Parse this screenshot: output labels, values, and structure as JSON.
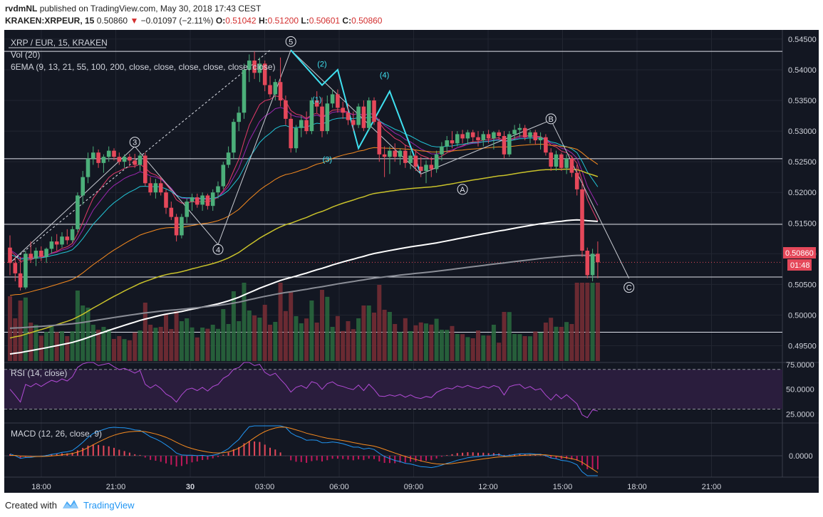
{
  "header": {
    "author": "rvdmNL",
    "published": "published on TradingView.com, May 30, 2018 17:43 CEST",
    "symbol": "KRAKEN:XRPEUR, 15",
    "last": "0.50860",
    "arrow": "▼",
    "change": "−0.01097 (−2.11%)",
    "o_label": "O:",
    "o": "0.51042",
    "h_label": "H:",
    "h": "0.51200",
    "l_label": "L:",
    "l": "0.50601",
    "c_label": "C:",
    "c": "0.50860"
  },
  "legend": {
    "title": "XRP / EUR, 15, KRAKEN",
    "vol": "Vol (20)",
    "ema": "6EMA (9, 13, 21, 55, 100, 200, close, close, close, close, close, close)"
  },
  "price_badge": "0.50860",
  "timer_badge": "01:48",
  "rsi_label": "RSI (14, close)",
  "macd_label": "MACD (12, 26, close, 9)",
  "footer": {
    "created": "Created with",
    "brand": "TradingView"
  },
  "colors": {
    "up": "#4caf7a",
    "down": "#e5485a",
    "bg": "#131722",
    "ema9": "#e43b6a",
    "ema13": "#9c27b0",
    "ema21": "#22c4d6",
    "ema55": "#f58a1f",
    "ema100": "#c9c22b",
    "ema200": "#ffffff"
  },
  "chart_data": [
    {
      "type": "candlestick",
      "title": "XRP / EUR, 15, KRAKEN",
      "y_axis": {
        "range": [
          0.4925,
          0.5465
        ],
        "ticks": [
          "0.54500",
          "0.54000",
          "0.53500",
          "0.53000",
          "0.52500",
          "0.52000",
          "0.51500",
          "0.51000",
          "0.50500",
          "0.50000",
          "0.49500"
        ]
      },
      "x_axis": {
        "ticks": [
          "18:00",
          "21:00",
          "30",
          "03:00",
          "06:00",
          "09:00",
          "12:00",
          "15:00",
          "18:00",
          "21:00"
        ]
      },
      "candles": [
        {
          "o": 0.511,
          "h": 0.513,
          "l": 0.5065,
          "c": 0.5085
        },
        {
          "o": 0.5085,
          "h": 0.5095,
          "l": 0.5055,
          "c": 0.5068
        },
        {
          "o": 0.5068,
          "h": 0.5095,
          "l": 0.504,
          "c": 0.5045
        },
        {
          "o": 0.5045,
          "h": 0.5105,
          "l": 0.5042,
          "c": 0.51
        },
        {
          "o": 0.51,
          "h": 0.512,
          "l": 0.5085,
          "c": 0.5092
        },
        {
          "o": 0.5092,
          "h": 0.511,
          "l": 0.508,
          "c": 0.5105
        },
        {
          "o": 0.5105,
          "h": 0.5112,
          "l": 0.5088,
          "c": 0.5095
        },
        {
          "o": 0.5095,
          "h": 0.511,
          "l": 0.5085,
          "c": 0.5108
        },
        {
          "o": 0.5108,
          "h": 0.5128,
          "l": 0.51,
          "c": 0.512
        },
        {
          "o": 0.512,
          "h": 0.5132,
          "l": 0.5105,
          "c": 0.5115
        },
        {
          "o": 0.5115,
          "h": 0.5135,
          "l": 0.511,
          "c": 0.5128
        },
        {
          "o": 0.5128,
          "h": 0.514,
          "l": 0.5115,
          "c": 0.5122
        },
        {
          "o": 0.5122,
          "h": 0.5145,
          "l": 0.5118,
          "c": 0.514
        },
        {
          "o": 0.514,
          "h": 0.52,
          "l": 0.5135,
          "c": 0.5195
        },
        {
          "o": 0.5195,
          "h": 0.5235,
          "l": 0.518,
          "c": 0.5225
        },
        {
          "o": 0.5225,
          "h": 0.5265,
          "l": 0.5215,
          "c": 0.5255
        },
        {
          "o": 0.5255,
          "h": 0.5275,
          "l": 0.5245,
          "c": 0.5265
        },
        {
          "o": 0.5265,
          "h": 0.527,
          "l": 0.524,
          "c": 0.5248
        },
        {
          "o": 0.5248,
          "h": 0.5262,
          "l": 0.5232,
          "c": 0.5258
        },
        {
          "o": 0.5258,
          "h": 0.5275,
          "l": 0.525,
          "c": 0.5268
        },
        {
          "o": 0.5268,
          "h": 0.5272,
          "l": 0.5252,
          "c": 0.5258
        },
        {
          "o": 0.5258,
          "h": 0.5265,
          "l": 0.5245,
          "c": 0.525
        },
        {
          "o": 0.525,
          "h": 0.5262,
          "l": 0.524,
          "c": 0.5258
        },
        {
          "o": 0.5258,
          "h": 0.5263,
          "l": 0.5245,
          "c": 0.5252
        },
        {
          "o": 0.5252,
          "h": 0.5263,
          "l": 0.524,
          "c": 0.5245
        },
        {
          "o": 0.5245,
          "h": 0.5265,
          "l": 0.5235,
          "c": 0.526
        },
        {
          "o": 0.526,
          "h": 0.5265,
          "l": 0.521,
          "c": 0.5215
        },
        {
          "o": 0.5215,
          "h": 0.5225,
          "l": 0.5195,
          "c": 0.52
        },
        {
          "o": 0.52,
          "h": 0.5222,
          "l": 0.519,
          "c": 0.5215
        },
        {
          "o": 0.5215,
          "h": 0.5225,
          "l": 0.5195,
          "c": 0.52
        },
        {
          "o": 0.52,
          "h": 0.5205,
          "l": 0.5165,
          "c": 0.5175
        },
        {
          "o": 0.5175,
          "h": 0.5185,
          "l": 0.5155,
          "c": 0.516
        },
        {
          "o": 0.516,
          "h": 0.5165,
          "l": 0.512,
          "c": 0.513
        },
        {
          "o": 0.513,
          "h": 0.5165,
          "l": 0.5125,
          "c": 0.516
        },
        {
          "o": 0.516,
          "h": 0.519,
          "l": 0.515,
          "c": 0.5185
        },
        {
          "o": 0.5185,
          "h": 0.5198,
          "l": 0.517,
          "c": 0.5192
        },
        {
          "o": 0.5192,
          "h": 0.5198,
          "l": 0.5175,
          "c": 0.518
        },
        {
          "o": 0.518,
          "h": 0.52,
          "l": 0.517,
          "c": 0.5195
        },
        {
          "o": 0.5195,
          "h": 0.5198,
          "l": 0.5172,
          "c": 0.5178
        },
        {
          "o": 0.5178,
          "h": 0.5205,
          "l": 0.517,
          "c": 0.52
        },
        {
          "o": 0.52,
          "h": 0.5218,
          "l": 0.519,
          "c": 0.521
        },
        {
          "o": 0.521,
          "h": 0.525,
          "l": 0.5205,
          "c": 0.5245
        },
        {
          "o": 0.5245,
          "h": 0.5275,
          "l": 0.524,
          "c": 0.5265
        },
        {
          "o": 0.5265,
          "h": 0.532,
          "l": 0.5255,
          "c": 0.5315
        },
        {
          "o": 0.5315,
          "h": 0.534,
          "l": 0.53,
          "c": 0.533
        },
        {
          "o": 0.533,
          "h": 0.541,
          "l": 0.532,
          "c": 0.54
        },
        {
          "o": 0.54,
          "h": 0.5425,
          "l": 0.538,
          "c": 0.5415
        },
        {
          "o": 0.5415,
          "h": 0.543,
          "l": 0.5385,
          "c": 0.5395
        },
        {
          "o": 0.5395,
          "h": 0.542,
          "l": 0.538,
          "c": 0.541
        },
        {
          "o": 0.541,
          "h": 0.5415,
          "l": 0.5365,
          "c": 0.5375
        },
        {
          "o": 0.5375,
          "h": 0.539,
          "l": 0.5355,
          "c": 0.536
        },
        {
          "o": 0.536,
          "h": 0.5385,
          "l": 0.535,
          "c": 0.538
        },
        {
          "o": 0.538,
          "h": 0.542,
          "l": 0.534,
          "c": 0.535
        },
        {
          "o": 0.535,
          "h": 0.5358,
          "l": 0.531,
          "c": 0.532
        },
        {
          "o": 0.532,
          "h": 0.533,
          "l": 0.5265,
          "c": 0.5272
        },
        {
          "o": 0.5272,
          "h": 0.531,
          "l": 0.5265,
          "c": 0.5305
        },
        {
          "o": 0.5305,
          "h": 0.5325,
          "l": 0.529,
          "c": 0.5318
        },
        {
          "o": 0.5318,
          "h": 0.5332,
          "l": 0.5295,
          "c": 0.53
        },
        {
          "o": 0.53,
          "h": 0.5355,
          "l": 0.5295,
          "c": 0.535
        },
        {
          "o": 0.535,
          "h": 0.5365,
          "l": 0.533,
          "c": 0.534
        },
        {
          "o": 0.534,
          "h": 0.5355,
          "l": 0.529,
          "c": 0.53
        },
        {
          "o": 0.53,
          "h": 0.5358,
          "l": 0.5295,
          "c": 0.5345
        },
        {
          "o": 0.5345,
          "h": 0.5368,
          "l": 0.5338,
          "c": 0.536
        },
        {
          "o": 0.536,
          "h": 0.5368,
          "l": 0.533,
          "c": 0.5338
        },
        {
          "o": 0.5338,
          "h": 0.5348,
          "l": 0.532,
          "c": 0.533
        },
        {
          "o": 0.533,
          "h": 0.5345,
          "l": 0.531,
          "c": 0.5318
        },
        {
          "o": 0.5318,
          "h": 0.5332,
          "l": 0.53,
          "c": 0.531
        },
        {
          "o": 0.531,
          "h": 0.5345,
          "l": 0.5305,
          "c": 0.534
        },
        {
          "o": 0.534,
          "h": 0.535,
          "l": 0.53,
          "c": 0.5305
        },
        {
          "o": 0.5305,
          "h": 0.5355,
          "l": 0.53,
          "c": 0.535
        },
        {
          "o": 0.535,
          "h": 0.5355,
          "l": 0.531,
          "c": 0.5315
        },
        {
          "o": 0.5315,
          "h": 0.532,
          "l": 0.525,
          "c": 0.5262
        },
        {
          "o": 0.5262,
          "h": 0.5275,
          "l": 0.5225,
          "c": 0.5258
        },
        {
          "o": 0.5258,
          "h": 0.5275,
          "l": 0.523,
          "c": 0.5268
        },
        {
          "o": 0.5268,
          "h": 0.528,
          "l": 0.525,
          "c": 0.5258
        },
        {
          "o": 0.5258,
          "h": 0.5272,
          "l": 0.5245,
          "c": 0.5268
        },
        {
          "o": 0.5268,
          "h": 0.5278,
          "l": 0.524,
          "c": 0.5248
        },
        {
          "o": 0.5248,
          "h": 0.5268,
          "l": 0.5238,
          "c": 0.526
        },
        {
          "o": 0.526,
          "h": 0.5268,
          "l": 0.5235,
          "c": 0.5242
        },
        {
          "o": 0.5242,
          "h": 0.5258,
          "l": 0.5225,
          "c": 0.5235
        },
        {
          "o": 0.5235,
          "h": 0.5252,
          "l": 0.5215,
          "c": 0.5245
        },
        {
          "o": 0.5245,
          "h": 0.5258,
          "l": 0.5225,
          "c": 0.5238
        },
        {
          "o": 0.5238,
          "h": 0.5268,
          "l": 0.5232,
          "c": 0.5262
        },
        {
          "o": 0.5262,
          "h": 0.5282,
          "l": 0.5252,
          "c": 0.5275
        },
        {
          "o": 0.5275,
          "h": 0.5292,
          "l": 0.5265,
          "c": 0.5285
        },
        {
          "o": 0.5285,
          "h": 0.53,
          "l": 0.5272,
          "c": 0.528
        },
        {
          "o": 0.528,
          "h": 0.53,
          "l": 0.5275,
          "c": 0.5295
        },
        {
          "o": 0.5295,
          "h": 0.5302,
          "l": 0.528,
          "c": 0.5288
        },
        {
          "o": 0.5288,
          "h": 0.5302,
          "l": 0.5278,
          "c": 0.5298
        },
        {
          "o": 0.5298,
          "h": 0.5302,
          "l": 0.5282,
          "c": 0.529
        },
        {
          "o": 0.529,
          "h": 0.53,
          "l": 0.5275,
          "c": 0.5285
        },
        {
          "o": 0.5285,
          "h": 0.53,
          "l": 0.5275,
          "c": 0.5295
        },
        {
          "o": 0.5295,
          "h": 0.5302,
          "l": 0.528,
          "c": 0.5288
        },
        {
          "o": 0.5288,
          "h": 0.53,
          "l": 0.527,
          "c": 0.5298
        },
        {
          "o": 0.5298,
          "h": 0.5302,
          "l": 0.5285,
          "c": 0.5292
        },
        {
          "o": 0.5292,
          "h": 0.53,
          "l": 0.5255,
          "c": 0.5262
        },
        {
          "o": 0.5262,
          "h": 0.53,
          "l": 0.5258,
          "c": 0.5295
        },
        {
          "o": 0.5295,
          "h": 0.531,
          "l": 0.5285,
          "c": 0.5302
        },
        {
          "o": 0.5302,
          "h": 0.5312,
          "l": 0.529,
          "c": 0.5305
        },
        {
          "o": 0.5305,
          "h": 0.531,
          "l": 0.5285,
          "c": 0.529
        },
        {
          "o": 0.529,
          "h": 0.5302,
          "l": 0.528,
          "c": 0.5298
        },
        {
          "o": 0.5298,
          "h": 0.5302,
          "l": 0.5278,
          "c": 0.5285
        },
        {
          "o": 0.5285,
          "h": 0.5298,
          "l": 0.527,
          "c": 0.529
        },
        {
          "o": 0.529,
          "h": 0.5295,
          "l": 0.526,
          "c": 0.5265
        },
        {
          "o": 0.5265,
          "h": 0.5272,
          "l": 0.5235,
          "c": 0.5242
        },
        {
          "o": 0.5242,
          "h": 0.5268,
          "l": 0.5235,
          "c": 0.5262
        },
        {
          "o": 0.5262,
          "h": 0.5265,
          "l": 0.5235,
          "c": 0.524
        },
        {
          "o": 0.524,
          "h": 0.5262,
          "l": 0.523,
          "c": 0.5255
        },
        {
          "o": 0.5255,
          "h": 0.526,
          "l": 0.5225,
          "c": 0.5232
        },
        {
          "o": 0.5232,
          "h": 0.5245,
          "l": 0.5195,
          "c": 0.5205
        },
        {
          "o": 0.5205,
          "h": 0.5215,
          "l": 0.5095,
          "c": 0.5105
        },
        {
          "o": 0.5105,
          "h": 0.511,
          "l": 0.506,
          "c": 0.5065
        },
        {
          "o": 0.5065,
          "h": 0.5108,
          "l": 0.5055,
          "c": 0.51
        },
        {
          "o": 0.51,
          "h": 0.512,
          "l": 0.506,
          "c": 0.5086
        }
      ],
      "horizontal_lines": [
        0.543,
        0.5255,
        0.5148,
        0.5062,
        0.4972
      ],
      "elliott_labels": [
        {
          "label": "3",
          "price": 0.5282
        },
        {
          "label": "4",
          "price": 0.5107
        },
        {
          "label": "5",
          "price": 0.5446
        },
        {
          "label": "(2)",
          "price": 0.541
        },
        {
          "label": "(1)",
          "price": 0.5352
        },
        {
          "label": "(3)",
          "price": 0.5254
        },
        {
          "label": "(4)",
          "price": 0.5392
        },
        {
          "label": "A",
          "price": 0.5205
        },
        {
          "label": "B",
          "price": 0.532
        },
        {
          "label": "C",
          "price": 0.5045
        }
      ]
    },
    {
      "type": "line",
      "title": "RSI (14, close)",
      "y_axis": {
        "range": [
          16,
          77
        ],
        "ticks": [
          "75.0000",
          "50.0000",
          "25.0000"
        ]
      },
      "bands": [
        30,
        70
      ]
    },
    {
      "type": "line",
      "title": "MACD (12, 26, close, 9)",
      "y_axis": {
        "ticks": [
          "0.0000"
        ]
      }
    }
  ]
}
